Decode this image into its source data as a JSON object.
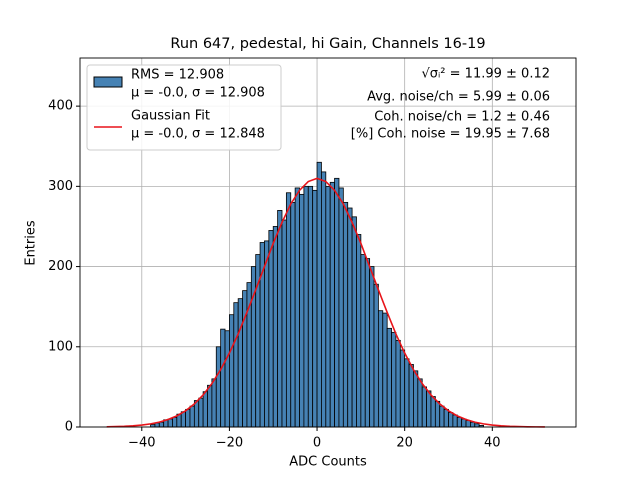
{
  "chart_data": {
    "type": "histogram",
    "title": "Run 647, pedestal, hi Gain, Channels 16-19",
    "xlabel": "ADC Counts",
    "ylabel": "Entries",
    "bins": [
      -38,
      -37,
      -36,
      -35,
      -34,
      -33,
      -32,
      -31,
      -30,
      -29,
      -28,
      -27,
      -26,
      -25,
      -24,
      -23,
      -22,
      -21,
      -20,
      -19,
      -18,
      -17,
      -16,
      -15,
      -14,
      -13,
      -12,
      -11,
      -10,
      -9,
      -8,
      -7,
      -6,
      -5,
      -4,
      -3,
      -2,
      -1,
      0,
      1,
      2,
      3,
      4,
      5,
      6,
      7,
      8,
      9,
      10,
      11,
      12,
      13,
      14,
      15,
      16,
      17,
      18,
      19,
      20,
      21,
      22,
      23,
      24,
      25,
      26,
      27,
      28,
      29,
      30,
      31,
      32,
      33,
      34,
      35,
      36,
      37,
      38
    ],
    "counts": [
      3,
      5,
      6,
      9,
      10,
      12,
      16,
      19,
      22,
      26,
      33,
      36,
      44,
      52,
      60,
      100,
      122,
      120,
      140,
      155,
      160,
      170,
      180,
      200,
      215,
      230,
      232,
      245,
      250,
      270,
      258,
      292,
      280,
      298,
      290,
      300,
      300,
      295,
      330,
      318,
      300,
      305,
      310,
      298,
      280,
      273,
      262,
      240,
      215,
      210,
      200,
      178,
      145,
      142,
      123,
      118,
      108,
      96,
      85,
      78,
      70,
      60,
      50,
      45,
      38,
      32,
      26,
      22,
      18,
      15,
      12,
      10,
      8,
      6,
      4,
      2
    ],
    "hist_name": [
      "RMS = 12.908",
      "μ = -0.0, σ = 12.908"
    ],
    "hist_color": "#4682b4",
    "fit": {
      "name": [
        "Gaussian Fit",
        "μ = -0.0, σ = 12.848"
      ],
      "color": "#e8141a",
      "x": [
        -48,
        -46,
        -44,
        -42,
        -40,
        -38,
        -36,
        -34,
        -32,
        -30,
        -28,
        -26,
        -24,
        -22,
        -20,
        -18,
        -16,
        -14,
        -12,
        -10,
        -8,
        -6,
        -4,
        -2,
        0,
        2,
        4,
        6,
        8,
        10,
        12,
        14,
        16,
        18,
        20,
        22,
        24,
        26,
        28,
        30,
        32,
        34,
        36,
        38,
        40,
        42,
        44,
        46,
        48,
        50,
        52
      ],
      "values": [
        0.29,
        0.51,
        0.88,
        1.5,
        2.4,
        3.9,
        6.1,
        9.3,
        13.9,
        20.2,
        28.8,
        40.0,
        54.1,
        71.5,
        92.2,
        116,
        143,
        171,
        200,
        229,
        255,
        278,
        295,
        306,
        310,
        306,
        295,
        278,
        255,
        229,
        200,
        171,
        143,
        116,
        92.2,
        71.5,
        54.1,
        40.0,
        28.8,
        20.2,
        13.9,
        9.3,
        6.1,
        3.9,
        2.4,
        1.5,
        0.88,
        0.51,
        0.29,
        0.16,
        0.09
      ]
    },
    "annotations": [
      "√σᵢ² = 11.99 ± 0.12",
      "Avg. noise/ch = 5.99 ± 0.06",
      "Coh. noise/ch = 1.2 ± 0.46",
      "[%] Coh. noise = 19.95 ± 7.68"
    ],
    "xlim": [
      -54.1,
      59.1
    ],
    "ylim": [
      0,
      460
    ],
    "xticks": [
      -40,
      -20,
      0,
      20,
      40
    ],
    "yticks": [
      0,
      100,
      200,
      300,
      400
    ],
    "grid": true,
    "legend": "upper left"
  }
}
